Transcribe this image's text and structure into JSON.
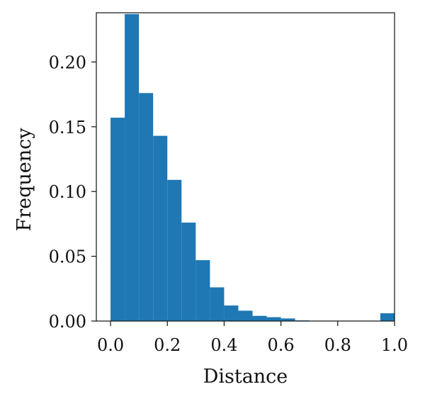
{
  "chart_data": {
    "type": "bar",
    "title": "",
    "xlabel": "Distance",
    "ylabel": "Frequency",
    "bin_width": 0.05,
    "bin_starts": [
      0.0,
      0.05,
      0.1,
      0.15,
      0.2,
      0.25,
      0.3,
      0.35,
      0.4,
      0.45,
      0.5,
      0.55,
      0.6,
      0.65,
      0.7,
      0.75,
      0.8,
      0.85,
      0.9,
      0.95
    ],
    "values": [
      0.157,
      0.237,
      0.176,
      0.143,
      0.109,
      0.076,
      0.047,
      0.026,
      0.012,
      0.008,
      0.004,
      0.003,
      0.002,
      0.0005,
      0.0003,
      0.0003,
      0.0003,
      0.0003,
      0.0003,
      0.006
    ],
    "xlim": [
      -0.05,
      1.0
    ],
    "ylim": [
      0.0,
      0.238
    ],
    "xticks": [
      0.0,
      0.2,
      0.4,
      0.6,
      0.8,
      1.0
    ],
    "xtick_labels": [
      "0.0",
      "0.2",
      "0.4",
      "0.6",
      "0.8",
      "1.0"
    ],
    "yticks": [
      0.0,
      0.05,
      0.1,
      0.15,
      0.2
    ],
    "ytick_labels": [
      "0.00",
      "0.05",
      "0.10",
      "0.15",
      "0.20"
    ],
    "bar_color": "#1f77b4",
    "grid": false,
    "legend": "none"
  }
}
